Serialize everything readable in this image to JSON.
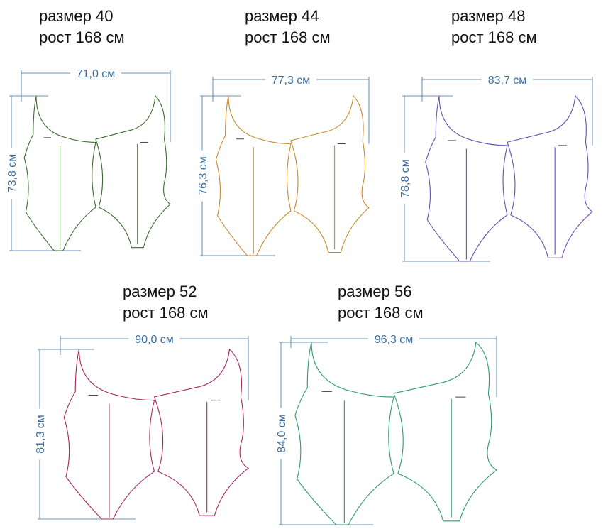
{
  "dimension_color": "#3a6fa3",
  "patterns": [
    {
      "size_label": "размер 40",
      "height_label": "рост 168 см",
      "width_label": "71,0 см",
      "length_label": "73,8 см",
      "color": "#3b6b2e"
    },
    {
      "size_label": "размер 44",
      "height_label": "рост 168 см",
      "width_label": "77,3 см",
      "length_label": "76,3 см",
      "color": "#c78a2e"
    },
    {
      "size_label": "размер 48",
      "height_label": "рост 168 см",
      "width_label": "83,7 см",
      "length_label": "78,8 см",
      "color": "#6a4fb0"
    },
    {
      "size_label": "размер 52",
      "height_label": "рост 168 см",
      "width_label": "90,0 см",
      "length_label": "81,3 см",
      "color": "#a8285a"
    },
    {
      "size_label": "размер 56",
      "height_label": "рост 168 см",
      "width_label": "96,3 см",
      "length_label": "84,0 см",
      "color": "#2e9a78"
    }
  ]
}
